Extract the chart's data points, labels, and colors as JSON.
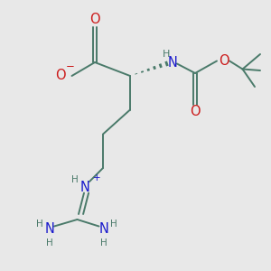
{
  "background_color": "#e8e8e8",
  "bond_color": "#4a7a6a",
  "N_color": "#1a1acc",
  "O_color": "#cc1a1a",
  "H_color": "#4a7a6a",
  "fig_width": 3.0,
  "fig_height": 3.0,
  "dpi": 100,
  "xlim": [
    0,
    10
  ],
  "ylim": [
    0,
    10
  ]
}
